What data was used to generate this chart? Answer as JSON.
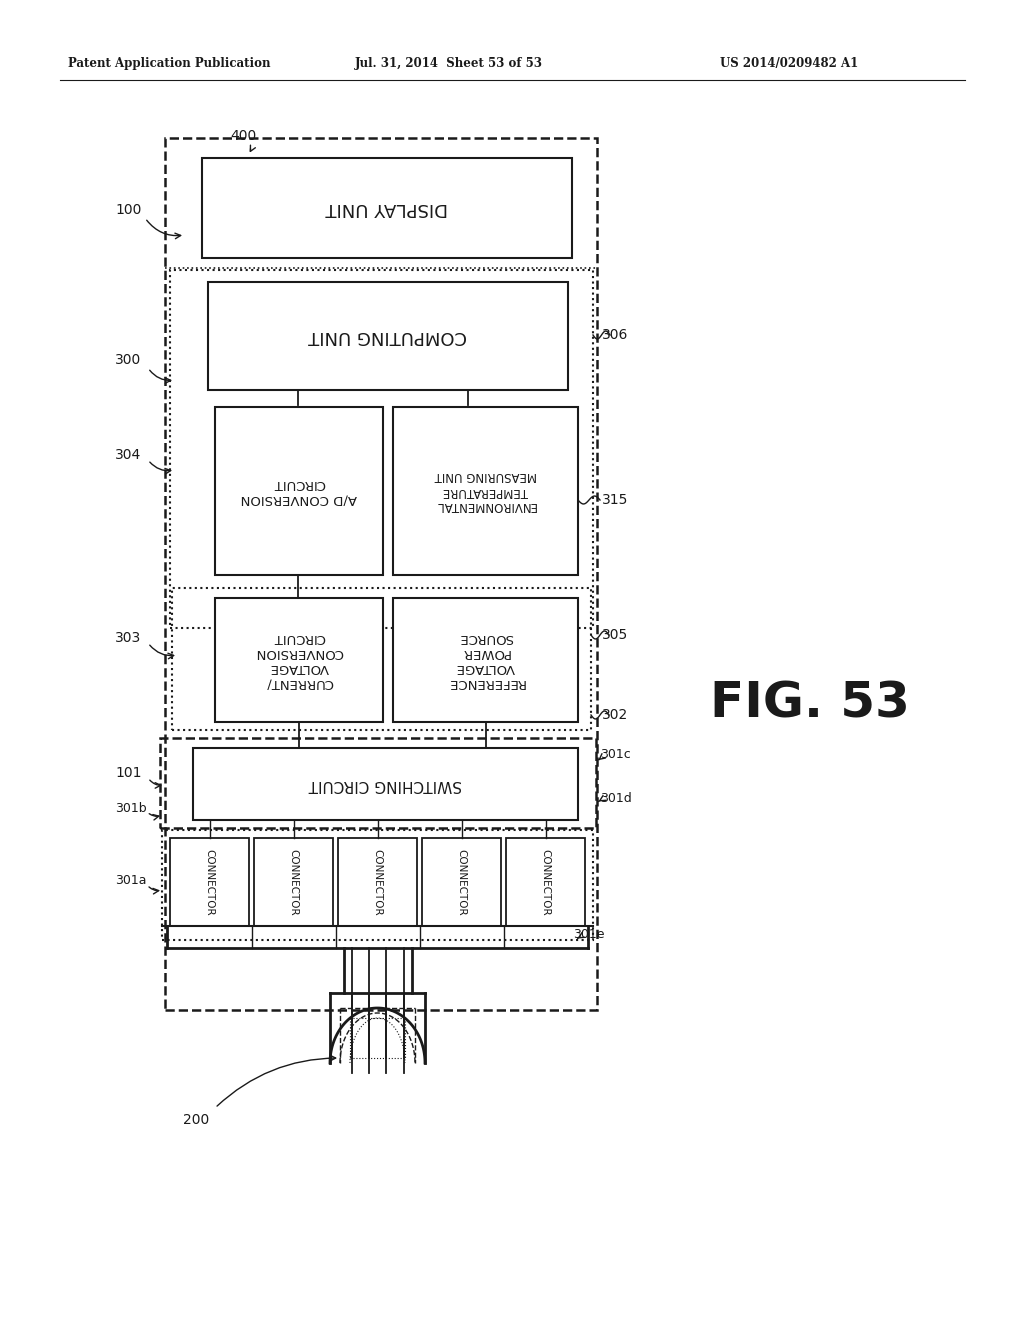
{
  "header_left": "Patent Application Publication",
  "header_mid": "Jul. 31, 2014  Sheet 53 of 53",
  "header_right": "US 2014/0209482 A1",
  "fig_label": "FIG. 53",
  "bg_color": "#ffffff",
  "line_color": "#1a1a1a",
  "label_100": "100",
  "label_200": "200",
  "label_300": "300",
  "label_400": "400",
  "label_101": "101",
  "label_301a": "301a",
  "label_301b": "301b",
  "label_301c": "301c",
  "label_301d": "301d",
  "label_301e": "301e",
  "label_302": "302",
  "label_303": "303",
  "label_304": "304",
  "label_305": "305",
  "label_306": "306",
  "label_315": "315",
  "box_display": "DISPLAY UNIT",
  "box_computing": "COMPUTING UNIT",
  "box_ad": "A/D CONVERSION\nCIRCUIT",
  "box_env": "ENVIRONMENTAL\nTEMPERATURE\nMEASURING UNIT",
  "box_cv": "CURRENT/\nVOLTAGE\nCONVERSION\nCIRCUIT",
  "box_ref": "REFERENCE\nVOLTAGE\nPOWER\nSOURCE",
  "box_switch": "SWITCHING CIRCUIT",
  "box_conn": "CONNECTOR"
}
